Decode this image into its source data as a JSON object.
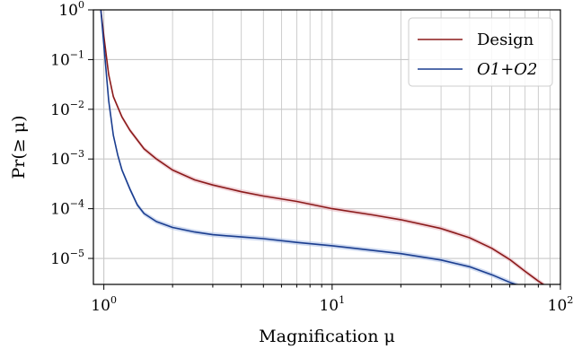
{
  "chart_data": {
    "type": "line",
    "xlabel": "Magnification μ",
    "ylabel": "Pr(≥ μ)",
    "x_scale": "log",
    "y_scale": "log",
    "xlim": [
      0.9,
      100
    ],
    "ylim": [
      3e-06,
      1
    ],
    "grid": true,
    "legend_position": "top-right",
    "x_ticks": [
      {
        "base": "10",
        "exp": "0",
        "value": 1
      },
      {
        "base": "10",
        "exp": "1",
        "value": 10
      },
      {
        "base": "10",
        "exp": "2",
        "value": 100
      }
    ],
    "y_ticks": [
      {
        "base": "10",
        "exp": "0",
        "value": 1
      },
      {
        "base": "10",
        "exp": "−1",
        "value": 0.1
      },
      {
        "base": "10",
        "exp": "−2",
        "value": 0.01
      },
      {
        "base": "10",
        "exp": "−3",
        "value": 0.001
      },
      {
        "base": "10",
        "exp": "−4",
        "value": 0.0001
      },
      {
        "base": "10",
        "exp": "−5",
        "value": 1e-05
      }
    ],
    "series": [
      {
        "name": "Design",
        "color": "#8b1a1a",
        "band_color": "#e8b4be",
        "points": [
          [
            0.97,
            1.0
          ],
          [
            1.0,
            0.3
          ],
          [
            1.05,
            0.05
          ],
          [
            1.1,
            0.018
          ],
          [
            1.2,
            0.007
          ],
          [
            1.3,
            0.0038
          ],
          [
            1.5,
            0.0016
          ],
          [
            1.7,
            0.001
          ],
          [
            2.0,
            0.0006
          ],
          [
            2.5,
            0.00038
          ],
          [
            3.0,
            0.0003
          ],
          [
            4.0,
            0.00022
          ],
          [
            5.0,
            0.00018
          ],
          [
            7.0,
            0.00014
          ],
          [
            10.0,
            0.0001
          ],
          [
            15.0,
            7.5e-05
          ],
          [
            20.0,
            6e-05
          ],
          [
            30.0,
            4e-05
          ],
          [
            40.0,
            2.6e-05
          ],
          [
            50.0,
            1.6e-05
          ],
          [
            60.0,
            9.5e-06
          ],
          [
            70.0,
            5.5e-06
          ],
          [
            80.0,
            3.5e-06
          ],
          [
            85.0,
            2.9e-06
          ]
        ]
      },
      {
        "name": "O1+O2",
        "color": "#1a3d8f",
        "band_color": "#a9bde6",
        "points": [
          [
            0.97,
            1.0
          ],
          [
            1.0,
            0.2
          ],
          [
            1.05,
            0.015
          ],
          [
            1.1,
            0.003
          ],
          [
            1.15,
            0.0012
          ],
          [
            1.2,
            0.0006
          ],
          [
            1.3,
            0.00025
          ],
          [
            1.4,
            0.00012
          ],
          [
            1.5,
            8e-05
          ],
          [
            1.7,
            5.5e-05
          ],
          [
            2.0,
            4.2e-05
          ],
          [
            2.5,
            3.4e-05
          ],
          [
            3.0,
            3e-05
          ],
          [
            4.0,
            2.7e-05
          ],
          [
            5.0,
            2.5e-05
          ],
          [
            7.0,
            2.1e-05
          ],
          [
            10.0,
            1.8e-05
          ],
          [
            15.0,
            1.45e-05
          ],
          [
            20.0,
            1.25e-05
          ],
          [
            30.0,
            9.3e-06
          ],
          [
            40.0,
            6.8e-06
          ],
          [
            50.0,
            4.7e-06
          ],
          [
            60.0,
            3.3e-06
          ],
          [
            65.0,
            2.9e-06
          ]
        ]
      }
    ]
  }
}
